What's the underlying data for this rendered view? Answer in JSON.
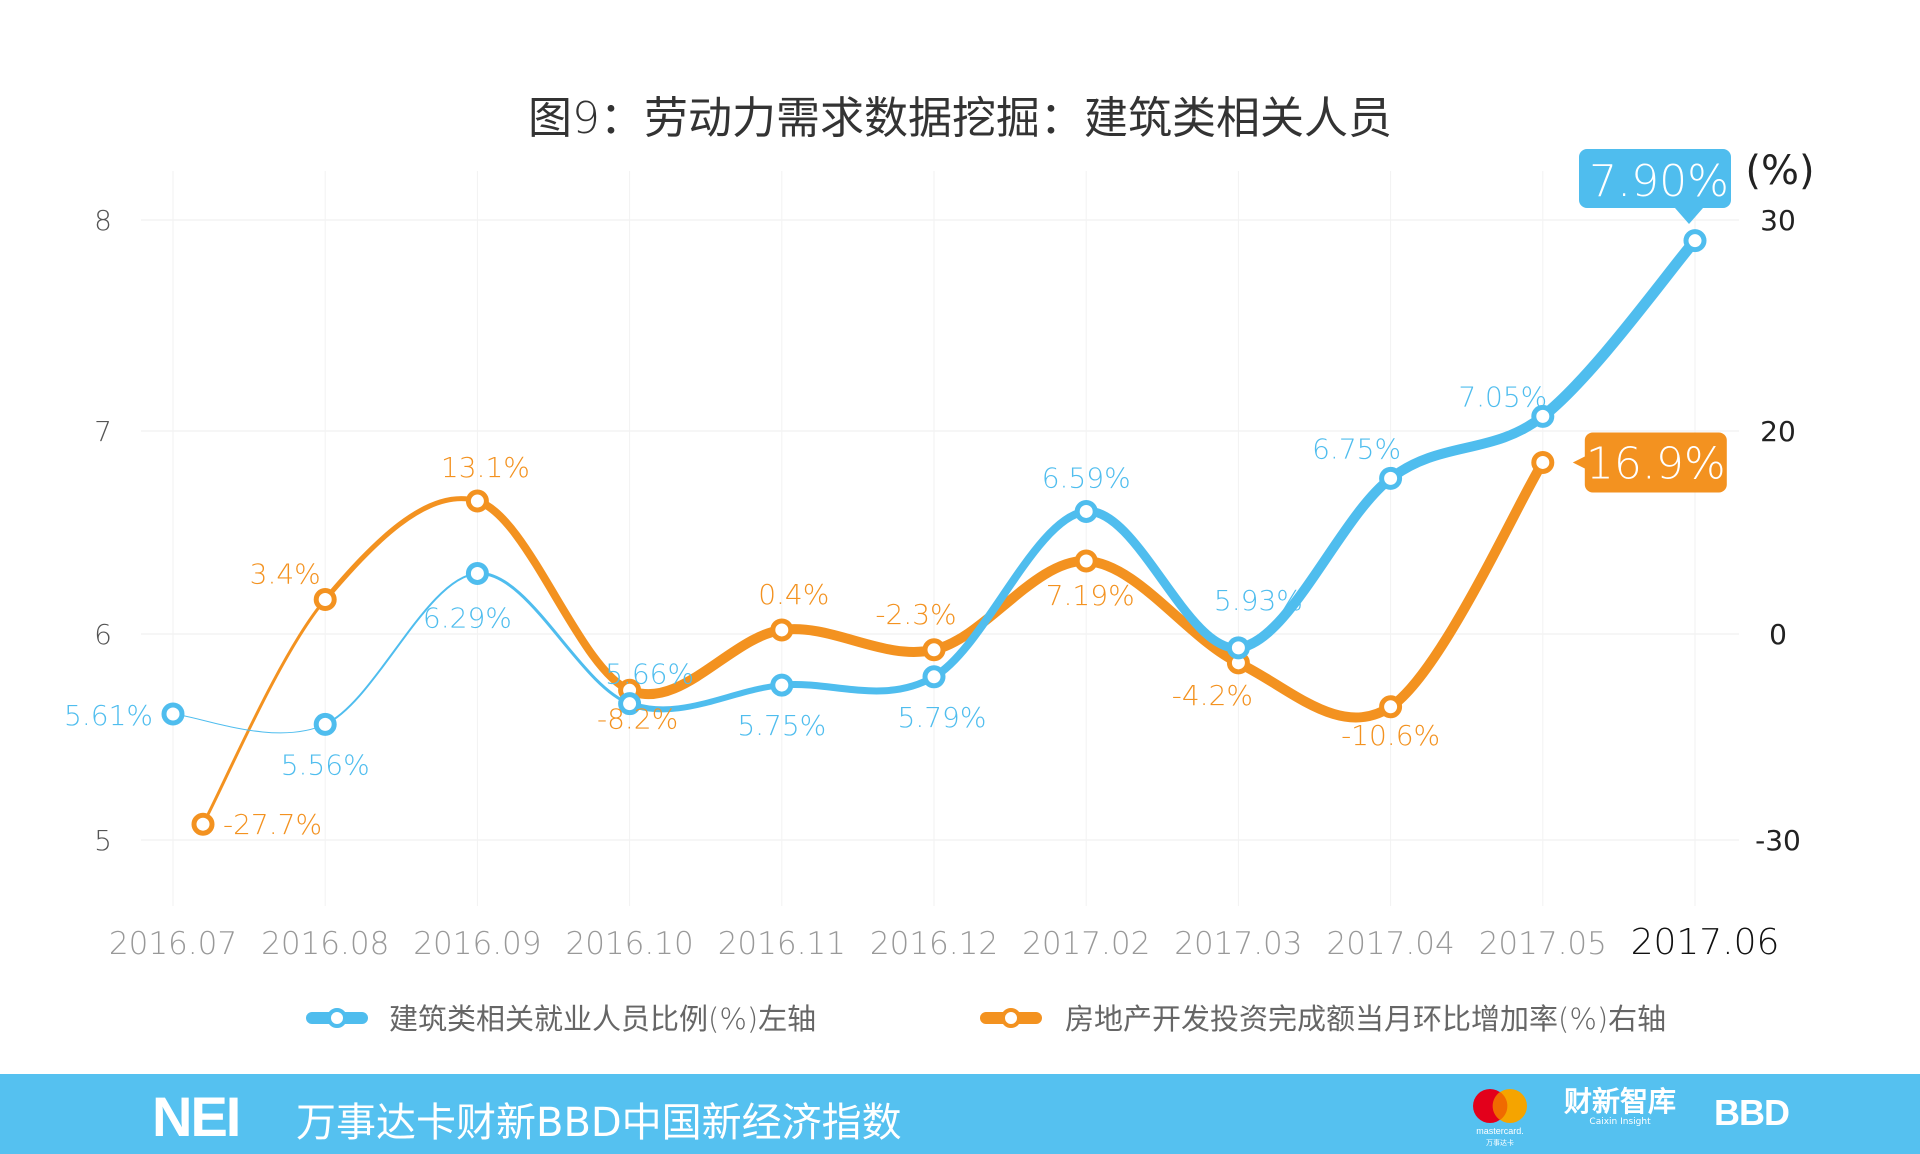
{
  "title": "图9：劳动力需求数据挖掘：建筑类相关人员",
  "chart_data": {
    "type": "line",
    "title": "图9：劳动力需求数据挖掘：建筑类相关人员",
    "categories": [
      "2016.07",
      "2016.08",
      "2016.09",
      "2016.10",
      "2016.11",
      "2016.12",
      "2017.02",
      "2017.03",
      "2017.04",
      "2017.05",
      "2017.06"
    ],
    "left_axis": {
      "ticks": [
        8,
        7,
        6,
        5
      ],
      "range": [
        5,
        8
      ]
    },
    "right_axis": {
      "unit": "(%)",
      "ticks": [
        30,
        20,
        0,
        -30
      ],
      "range": [
        -30,
        30
      ]
    },
    "grid": true,
    "legend_placement": "bottom",
    "series": [
      {
        "name": "建筑类相关就业人员比例(%)左轴",
        "axis": "left",
        "color": "#4fbdee",
        "values": [
          5.61,
          5.56,
          6.29,
          5.66,
          5.75,
          5.79,
          6.59,
          5.93,
          6.75,
          7.05,
          7.9
        ],
        "labels": [
          "5.61%",
          "5.56%",
          "6.29%",
          "5.66%",
          "5.75%",
          "5.79%",
          "6.59%",
          "5.93%",
          "6.75%",
          "7.05%",
          "7.90%"
        ]
      },
      {
        "name": "房地产开发投资完成额当月环比增加率(%)右轴",
        "axis": "right",
        "color": "#f39220",
        "values": [
          -27.7,
          3.4,
          13.1,
          -8.2,
          0.4,
          -2.3,
          7.19,
          -4.2,
          -10.6,
          16.9,
          null
        ],
        "labels": [
          "-27.7%",
          "3.4%",
          "13.1%",
          "-8.2%",
          "0.4%",
          "-2.3%",
          "7.19%",
          "-4.2%",
          "-10.6%",
          "16.9%",
          ""
        ]
      }
    ]
  },
  "footer": {
    "logo": "NEI",
    "text": "万事达卡财新BBD中国新经济指数",
    "partners": [
      "mastercard. 万事达卡",
      "财新智库 Caixin Insight",
      "BBD"
    ]
  }
}
